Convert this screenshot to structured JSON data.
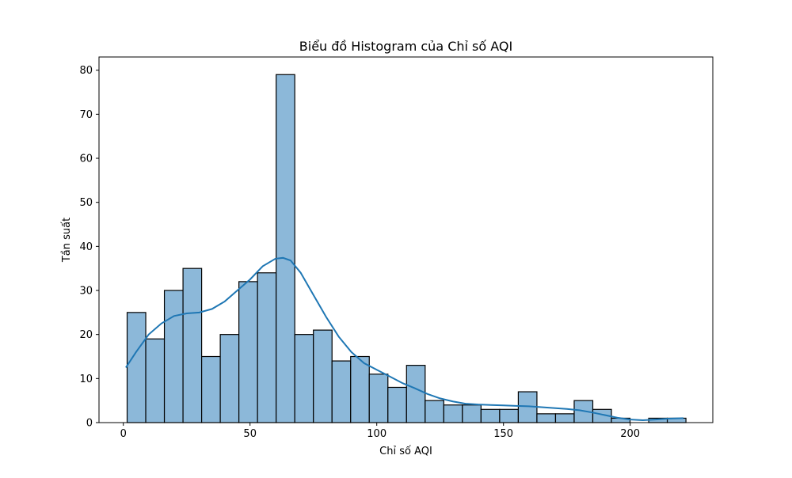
{
  "chart_data": {
    "type": "bar",
    "title": "Biểu đồ Histogram của Chỉ số AQI",
    "xlabel": "Chỉ số AQI",
    "ylabel": "Tần suất",
    "xlim": [
      -9.6,
      232.6
    ],
    "ylim": [
      0,
      83
    ],
    "xticks": [
      0,
      50,
      100,
      150,
      200
    ],
    "yticks": [
      0,
      10,
      20,
      30,
      40,
      50,
      60,
      70,
      80
    ],
    "bin_start": 1.5,
    "bin_width": 7.35,
    "bins": [
      {
        "x0": 1.5,
        "x1": 8.85,
        "count": 25
      },
      {
        "x0": 8.85,
        "x1": 16.2,
        "count": 19
      },
      {
        "x0": 16.2,
        "x1": 23.55,
        "count": 30
      },
      {
        "x0": 23.55,
        "x1": 30.9,
        "count": 35
      },
      {
        "x0": 30.9,
        "x1": 38.25,
        "count": 15
      },
      {
        "x0": 38.25,
        "x1": 45.6,
        "count": 20
      },
      {
        "x0": 45.6,
        "x1": 52.95,
        "count": 32
      },
      {
        "x0": 52.95,
        "x1": 60.3,
        "count": 34
      },
      {
        "x0": 60.3,
        "x1": 67.65,
        "count": 79
      },
      {
        "x0": 67.65,
        "x1": 75.0,
        "count": 20
      },
      {
        "x0": 75.0,
        "x1": 82.35,
        "count": 21
      },
      {
        "x0": 82.35,
        "x1": 89.7,
        "count": 14
      },
      {
        "x0": 89.7,
        "x1": 97.05,
        "count": 15
      },
      {
        "x0": 97.05,
        "x1": 104.4,
        "count": 11
      },
      {
        "x0": 104.4,
        "x1": 111.75,
        "count": 8
      },
      {
        "x0": 111.75,
        "x1": 119.1,
        "count": 13
      },
      {
        "x0": 119.1,
        "x1": 126.45,
        "count": 5
      },
      {
        "x0": 126.45,
        "x1": 133.8,
        "count": 4
      },
      {
        "x0": 133.8,
        "x1": 141.15,
        "count": 4
      },
      {
        "x0": 141.15,
        "x1": 148.5,
        "count": 3
      },
      {
        "x0": 148.5,
        "x1": 155.85,
        "count": 3
      },
      {
        "x0": 155.85,
        "x1": 163.2,
        "count": 7
      },
      {
        "x0": 163.2,
        "x1": 170.55,
        "count": 2
      },
      {
        "x0": 170.55,
        "x1": 177.9,
        "count": 2
      },
      {
        "x0": 177.9,
        "x1": 185.25,
        "count": 5
      },
      {
        "x0": 185.25,
        "x1": 192.6,
        "count": 3
      },
      {
        "x0": 192.6,
        "x1": 199.95,
        "count": 1
      },
      {
        "x0": 199.95,
        "x1": 207.3,
        "count": 0
      },
      {
        "x0": 207.3,
        "x1": 214.65,
        "count": 1
      },
      {
        "x0": 214.65,
        "x1": 222.0,
        "count": 1
      }
    ],
    "kde": [
      [
        1,
        12.5
      ],
      [
        5,
        16
      ],
      [
        10,
        20
      ],
      [
        15,
        22.5
      ],
      [
        20,
        24.2
      ],
      [
        25,
        24.8
      ],
      [
        30,
        25
      ],
      [
        35,
        25.8
      ],
      [
        40,
        27.5
      ],
      [
        45,
        30
      ],
      [
        50,
        32.5
      ],
      [
        55,
        35.5
      ],
      [
        60,
        37.2
      ],
      [
        63,
        37.4
      ],
      [
        66,
        36.8
      ],
      [
        70,
        34
      ],
      [
        75,
        29
      ],
      [
        80,
        24
      ],
      [
        85,
        19.5
      ],
      [
        90,
        16
      ],
      [
        95,
        13.5
      ],
      [
        100,
        12
      ],
      [
        105,
        10.5
      ],
      [
        110,
        9
      ],
      [
        115,
        7.8
      ],
      [
        120,
        6.5
      ],
      [
        125,
        5.5
      ],
      [
        130,
        4.8
      ],
      [
        135,
        4.3
      ],
      [
        140,
        4.1
      ],
      [
        145,
        4
      ],
      [
        150,
        3.9
      ],
      [
        155,
        3.8
      ],
      [
        160,
        3.7
      ],
      [
        165,
        3.5
      ],
      [
        170,
        3.3
      ],
      [
        175,
        3.1
      ],
      [
        180,
        2.8
      ],
      [
        185,
        2.3
      ],
      [
        190,
        1.7
      ],
      [
        195,
        1.1
      ],
      [
        200,
        0.7
      ],
      [
        205,
        0.55
      ],
      [
        210,
        0.7
      ],
      [
        215,
        0.9
      ],
      [
        221,
        1
      ]
    ],
    "bar_color": "#8cb8d9",
    "bar_edge_color": "#000000",
    "kde_color": "#1f77b4",
    "grid": false,
    "legend": "none"
  }
}
